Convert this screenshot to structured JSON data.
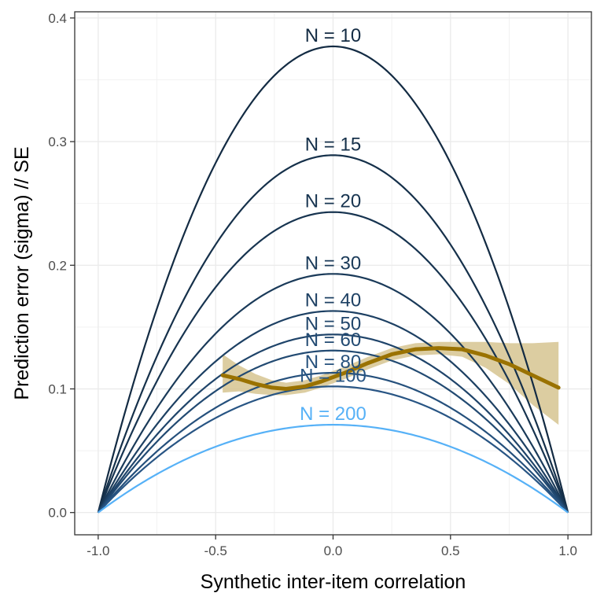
{
  "chart_data": {
    "type": "line",
    "xlabel": "Synthetic inter-item correlation",
    "ylabel": "Prediction error (sigma) // SE",
    "xlim": [
      -1.1,
      1.1
    ],
    "ylim": [
      -0.018,
      0.405
    ],
    "x_ticks": [
      "-1.0",
      "-0.5",
      "0.0",
      "0.5",
      "1.0"
    ],
    "y_ticks": [
      "0.0",
      "0.1",
      "0.2",
      "0.3",
      "0.4"
    ],
    "grid": true,
    "curves": [
      {
        "label": "N = 10",
        "peak": 0.377,
        "color": "#132b43"
      },
      {
        "label": "N = 15",
        "peak": 0.289,
        "color": "#15304a"
      },
      {
        "label": "N = 20",
        "peak": 0.243,
        "color": "#173450"
      },
      {
        "label": "N = 30",
        "peak": 0.193,
        "color": "#1a3a59"
      },
      {
        "label": "N = 40",
        "peak": 0.163,
        "color": "#1d4063"
      },
      {
        "label": "N = 50",
        "peak": 0.144,
        "color": "#1f446a"
      },
      {
        "label": "N = 60",
        "peak": 0.131,
        "color": "#224a72"
      },
      {
        "label": "N = 80",
        "peak": 0.113,
        "color": "#25507c"
      },
      {
        "label": "N = 100",
        "peak": 0.102,
        "color": "#285584"
      },
      {
        "label": "N = 200",
        "peak": 0.071,
        "color": "#56b1f7"
      }
    ],
    "smooth": {
      "color": "#9a7200",
      "band_color": "#d6c490",
      "points": [
        {
          "x": -0.47,
          "y": 0.111,
          "lo": 0.097,
          "hi": 0.128
        },
        {
          "x": -0.4,
          "y": 0.108,
          "lo": 0.098,
          "hi": 0.119
        },
        {
          "x": -0.33,
          "y": 0.104,
          "lo": 0.096,
          "hi": 0.112
        },
        {
          "x": -0.26,
          "y": 0.101,
          "lo": 0.095,
          "hi": 0.107
        },
        {
          "x": -0.2,
          "y": 0.1,
          "lo": 0.095,
          "hi": 0.105
        },
        {
          "x": -0.12,
          "y": 0.102,
          "lo": 0.097,
          "hi": 0.107
        },
        {
          "x": -0.05,
          "y": 0.106,
          "lo": 0.101,
          "hi": 0.111
        },
        {
          "x": 0.05,
          "y": 0.113,
          "lo": 0.108,
          "hi": 0.118
        },
        {
          "x": 0.15,
          "y": 0.121,
          "lo": 0.116,
          "hi": 0.126
        },
        {
          "x": 0.25,
          "y": 0.128,
          "lo": 0.123,
          "hi": 0.133
        },
        {
          "x": 0.35,
          "y": 0.132,
          "lo": 0.127,
          "hi": 0.137
        },
        {
          "x": 0.45,
          "y": 0.133,
          "lo": 0.128,
          "hi": 0.138
        },
        {
          "x": 0.55,
          "y": 0.132,
          "lo": 0.126,
          "hi": 0.138
        },
        {
          "x": 0.65,
          "y": 0.127,
          "lo": 0.117,
          "hi": 0.138
        },
        {
          "x": 0.75,
          "y": 0.12,
          "lo": 0.104,
          "hi": 0.137
        },
        {
          "x": 0.85,
          "y": 0.111,
          "lo": 0.087,
          "hi": 0.137
        },
        {
          "x": 0.96,
          "y": 0.101,
          "lo": 0.071,
          "hi": 0.138
        }
      ]
    }
  }
}
